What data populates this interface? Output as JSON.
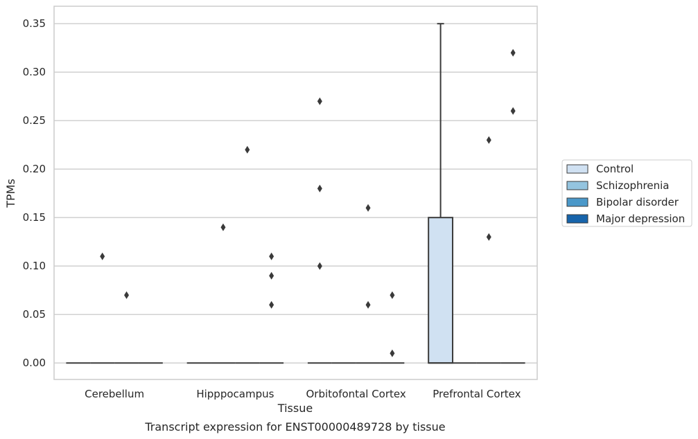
{
  "chart_data": {
    "type": "box",
    "title": "",
    "caption": "Transcript expression for ENST00000489728 by tissue",
    "xlabel": "Tissue",
    "ylabel": "TPMs",
    "ylim": [
      -0.017,
      0.368
    ],
    "yticks": [
      0.0,
      0.05,
      0.1,
      0.15,
      0.2,
      0.25,
      0.3,
      0.35
    ],
    "ytick_labels": [
      "0.00",
      "0.05",
      "0.10",
      "0.15",
      "0.20",
      "0.25",
      "0.30",
      "0.35"
    ],
    "grid": true,
    "legend_position": "right",
    "categories": [
      "Cerebellum",
      "Hipppocampus",
      "Orbitofontal Cortex",
      "Prefrontal Cortex"
    ],
    "series": [
      {
        "name": "Control",
        "color": "#d0e1f2",
        "boxes": [
          {
            "q1": 0,
            "median": 0,
            "q3": 0,
            "whisker_low": 0,
            "whisker_high": 0,
            "outliers": []
          },
          {
            "q1": 0,
            "median": 0,
            "q3": 0,
            "whisker_low": 0,
            "whisker_high": 0,
            "outliers": []
          },
          {
            "q1": 0,
            "median": 0,
            "q3": 0,
            "whisker_low": 0,
            "whisker_high": 0,
            "outliers": [
              0.27,
              0.18,
              0.1
            ]
          },
          {
            "q1": 0,
            "median": 0,
            "q3": 0.15,
            "whisker_low": 0,
            "whisker_high": 0.35,
            "outliers": []
          }
        ]
      },
      {
        "name": "Schizophrenia",
        "color": "#94c4df",
        "boxes": [
          {
            "q1": 0,
            "median": 0,
            "q3": 0,
            "whisker_low": 0,
            "whisker_high": 0,
            "outliers": [
              0.11
            ]
          },
          {
            "q1": 0,
            "median": 0,
            "q3": 0,
            "whisker_low": 0,
            "whisker_high": 0,
            "outliers": [
              0.14
            ]
          },
          {
            "q1": 0,
            "median": 0,
            "q3": 0,
            "whisker_low": 0,
            "whisker_high": 0,
            "outliers": []
          },
          {
            "q1": 0,
            "median": 0,
            "q3": 0,
            "whisker_low": 0,
            "whisker_high": 0,
            "outliers": []
          }
        ]
      },
      {
        "name": "Bipolar disorder",
        "color": "#4a98c9",
        "boxes": [
          {
            "q1": 0,
            "median": 0,
            "q3": 0,
            "whisker_low": 0,
            "whisker_high": 0,
            "outliers": [
              0.07
            ]
          },
          {
            "q1": 0,
            "median": 0,
            "q3": 0,
            "whisker_low": 0,
            "whisker_high": 0,
            "outliers": [
              0.22
            ]
          },
          {
            "q1": 0,
            "median": 0,
            "q3": 0,
            "whisker_low": 0,
            "whisker_high": 0,
            "outliers": [
              0.16,
              0.06
            ]
          },
          {
            "q1": 0,
            "median": 0,
            "q3": 0,
            "whisker_low": 0,
            "whisker_high": 0,
            "outliers": [
              0.23,
              0.13
            ]
          }
        ]
      },
      {
        "name": "Major depression",
        "color": "#1764ab",
        "boxes": [
          {
            "q1": 0,
            "median": 0,
            "q3": 0,
            "whisker_low": 0,
            "whisker_high": 0,
            "outliers": []
          },
          {
            "q1": 0,
            "median": 0,
            "q3": 0,
            "whisker_low": 0,
            "whisker_high": 0,
            "outliers": [
              0.11,
              0.09,
              0.06
            ]
          },
          {
            "q1": 0,
            "median": 0,
            "q3": 0,
            "whisker_low": 0,
            "whisker_high": 0,
            "outliers": [
              0.07,
              0.01
            ]
          },
          {
            "q1": 0,
            "median": 0,
            "q3": 0,
            "whisker_low": 0,
            "whisker_high": 0,
            "outliers": [
              0.32,
              0.26
            ]
          }
        ]
      }
    ]
  }
}
